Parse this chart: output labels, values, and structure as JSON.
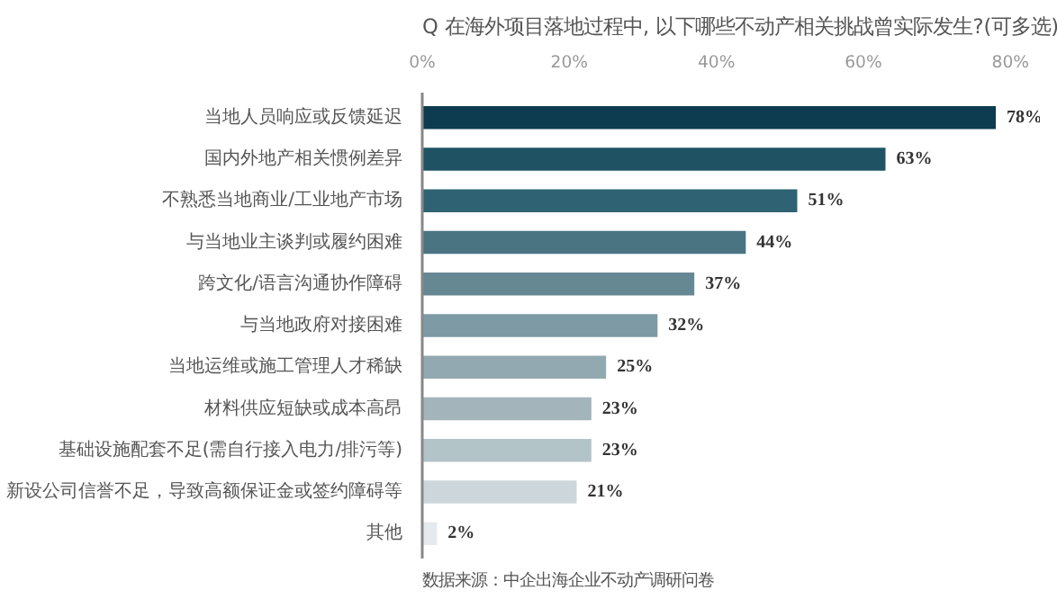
{
  "chart_data": {
    "type": "bar",
    "orientation": "horizontal",
    "title": "Q 在海外项目落地过程中, 以下哪些不动产相关挑战曾实际发生?(可多选)",
    "categories": [
      "当地人员响应或反馈延迟",
      "国内外地产相关惯例差异",
      "不熟悉当地商业/工业地产市场",
      "与当地业主谈判或履约困难",
      "跨文化/语言沟通协作障碍",
      "与当地政府对接困难",
      "当地运维或施工管理人才稀缺",
      "材料供应短缺或成本高昂",
      "基础设施配套不足(需自行接入电力/排污等)",
      "新设公司信誉不足，导致高额保证金或签约障碍等",
      "其他"
    ],
    "values": [
      78,
      63,
      51,
      44,
      37,
      32,
      25,
      23,
      23,
      21,
      2
    ],
    "value_labels": [
      "78%",
      "63%",
      "51%",
      "44%",
      "37%",
      "32%",
      "25%",
      "23%",
      "23%",
      "21%",
      "2%"
    ],
    "colors": [
      "#0d3b4f",
      "#1f5364",
      "#2f6272",
      "#4a7482",
      "#668893",
      "#7e9aa4",
      "#93a9b1",
      "#a3b5bb",
      "#b3c4c9",
      "#cdd7db",
      "#e4eaed"
    ],
    "xlim": [
      0,
      80
    ],
    "xticks": [
      {
        "value": 0,
        "label": "0%"
      },
      {
        "value": 20,
        "label": "20%"
      },
      {
        "value": 40,
        "label": "40%"
      },
      {
        "value": 60,
        "label": "60%"
      },
      {
        "value": 80,
        "label": "80%"
      }
    ],
    "grid": false,
    "annotations": [
      "数据来源：中企出海企业不动产调研问卷"
    ]
  }
}
